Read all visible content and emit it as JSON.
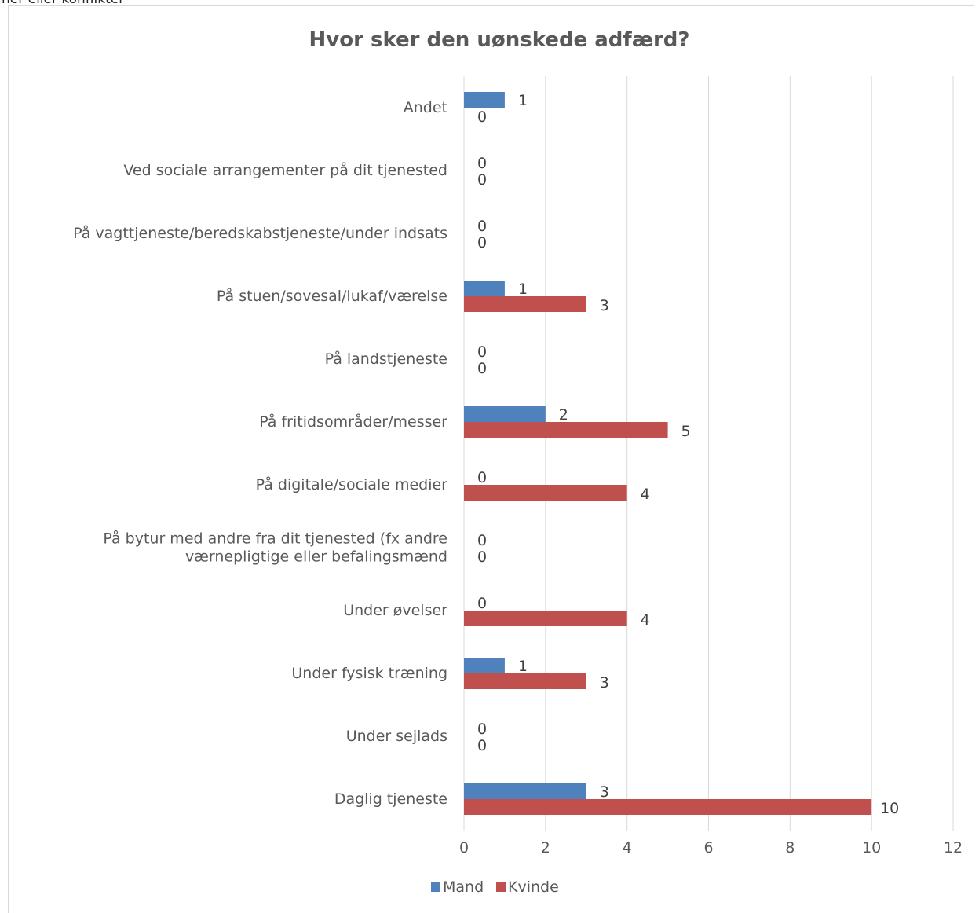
{
  "page": {
    "caption": "ner eller konflikter"
  },
  "chart_data": {
    "type": "bar",
    "orientation": "horizontal",
    "title": "Hvor sker den uønskede adfærd?",
    "xlabel": "",
    "ylabel": "",
    "xlim": [
      0,
      12
    ],
    "xticks": [
      0,
      2,
      4,
      6,
      8,
      10,
      12
    ],
    "grid": true,
    "legend_position": "bottom",
    "categories": [
      [
        "Andet"
      ],
      [
        "Ved sociale arrangementer på dit tjenested"
      ],
      [
        "På vagttjeneste/beredskabstjeneste/under indsats"
      ],
      [
        "På stuen/sovesal/lukaf/værelse"
      ],
      [
        "På landstjeneste"
      ],
      [
        "På fritidsområder/messer"
      ],
      [
        "På digitale/sociale medier"
      ],
      [
        "På bytur med andre fra dit tjenested (fx andre",
        "værnepligtige eller befalingsmænd"
      ],
      [
        "Under øvelser"
      ],
      [
        "Under fysisk træning"
      ],
      [
        "Under sejlads"
      ],
      [
        "Daglig tjeneste"
      ]
    ],
    "series": [
      {
        "name": "Mand",
        "color": "#4f81bd",
        "values": [
          1,
          0,
          0,
          1,
          0,
          2,
          0,
          0,
          0,
          1,
          0,
          3
        ]
      },
      {
        "name": "Kvinde",
        "color": "#c0504d",
        "values": [
          0,
          0,
          0,
          3,
          0,
          5,
          4,
          0,
          4,
          3,
          0,
          10
        ]
      }
    ]
  }
}
